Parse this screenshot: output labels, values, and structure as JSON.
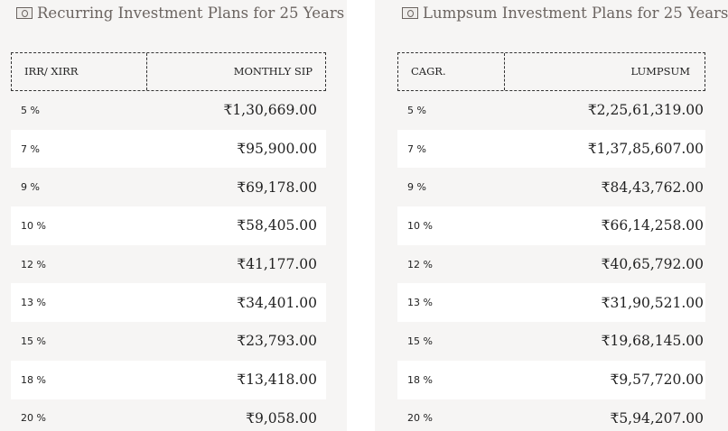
{
  "recurring": {
    "title": "Recurring Investment Plans for 25 Years",
    "icon": "money-icon",
    "headers": {
      "rate": "IRR/ XIRR",
      "amount": "MONTHLY SIP"
    },
    "rows": [
      {
        "rate": "5 %",
        "amount": "₹1,30,669.00"
      },
      {
        "rate": "7 %",
        "amount": "₹95,900.00"
      },
      {
        "rate": "9 %",
        "amount": "₹69,178.00"
      },
      {
        "rate": "10 %",
        "amount": "₹58,405.00"
      },
      {
        "rate": "12 %",
        "amount": "₹41,177.00"
      },
      {
        "rate": "13 %",
        "amount": "₹34,401.00"
      },
      {
        "rate": "15 %",
        "amount": "₹23,793.00"
      },
      {
        "rate": "18 %",
        "amount": "₹13,418.00"
      },
      {
        "rate": "20 %",
        "amount": "₹9,058.00"
      }
    ]
  },
  "lumpsum": {
    "title": "Lumpsum Investment Plans for 25 Years",
    "icon": "money-icon",
    "headers": {
      "rate": "CAGR.",
      "amount": "LUMPSUM"
    },
    "rows": [
      {
        "rate": "5 %",
        "amount": "₹2,25,61,319.00"
      },
      {
        "rate": "7 %",
        "amount": "₹1,37,85,607.00"
      },
      {
        "rate": "9 %",
        "amount": "₹84,43,762.00"
      },
      {
        "rate": "10 %",
        "amount": "₹66,14,258.00"
      },
      {
        "rate": "12 %",
        "amount": "₹40,65,792.00"
      },
      {
        "rate": "13 %",
        "amount": "₹31,90,521.00"
      },
      {
        "rate": "15 %",
        "amount": "₹19,68,145.00"
      },
      {
        "rate": "18 %",
        "amount": "₹9,57,720.00"
      },
      {
        "rate": "20 %",
        "amount": "₹5,94,207.00"
      }
    ]
  }
}
